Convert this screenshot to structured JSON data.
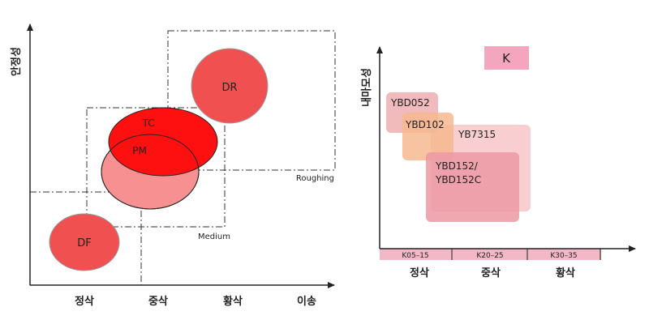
{
  "left_chart": {
    "y_axis_label": "안정성",
    "x_categories": [
      "정삭",
      "중삭",
      "황삭",
      "이송"
    ],
    "region_labels": {
      "roughing": "Roughing",
      "medium": "Medium"
    },
    "bubbles": {
      "dr": "DR",
      "tc": "TC",
      "pm": "PM",
      "df": "DF"
    }
  },
  "right_chart": {
    "y_axis_label": "내마모성",
    "badge": "K",
    "grades": {
      "ybd052": "YBD052",
      "ybd102": "YBD102",
      "yb7315": "YB7315",
      "ybd152_line1": "YBD152/",
      "ybd152_line2": "YBD152C"
    },
    "ranges": [
      "K05–15",
      "K20–25",
      "K30–35"
    ],
    "x_categories": [
      "정삭",
      "중삭",
      "황삭"
    ]
  },
  "colors": {
    "bubble_red": "#f05050",
    "bubble_red_dark": "#ff1010",
    "bubble_pink": "#f79090",
    "badge_pink": "#f4a6bf",
    "range_bar": "#f2b8c8"
  }
}
